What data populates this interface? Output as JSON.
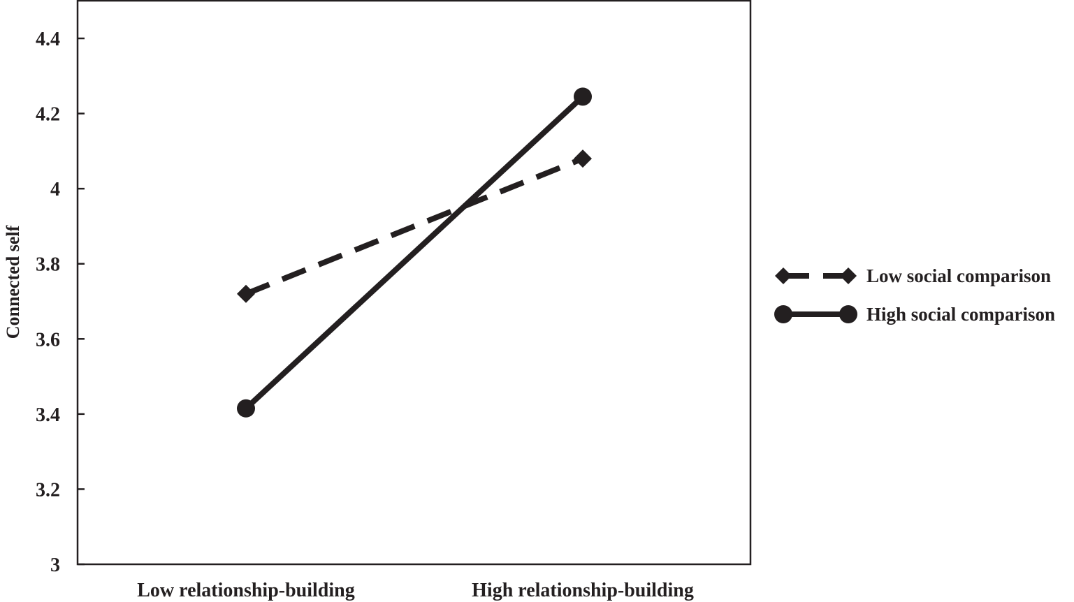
{
  "chart_data": {
    "type": "line",
    "title": "",
    "xlabel": "",
    "ylabel": "Connected self",
    "categories": [
      "Low relationship-building",
      "High relationship-building"
    ],
    "ylim": [
      3,
      4.4
    ],
    "yticks": [
      "3",
      "3.2",
      "3.4",
      "3.6",
      "3.8",
      "4",
      "4.2",
      "4.4"
    ],
    "ytick_values": [
      3,
      3.2,
      3.4,
      3.6,
      3.8,
      4,
      4.2,
      4.4
    ],
    "grid": false,
    "legend_position": "right",
    "series": [
      {
        "name": "Low social comparison",
        "values": [
          3.72,
          4.08
        ],
        "line_style": "dashed",
        "marker": "diamond",
        "color": "#231f20"
      },
      {
        "name": "High social comparison",
        "values": [
          3.415,
          4.245
        ],
        "line_style": "solid",
        "marker": "circle",
        "color": "#231f20"
      }
    ]
  }
}
